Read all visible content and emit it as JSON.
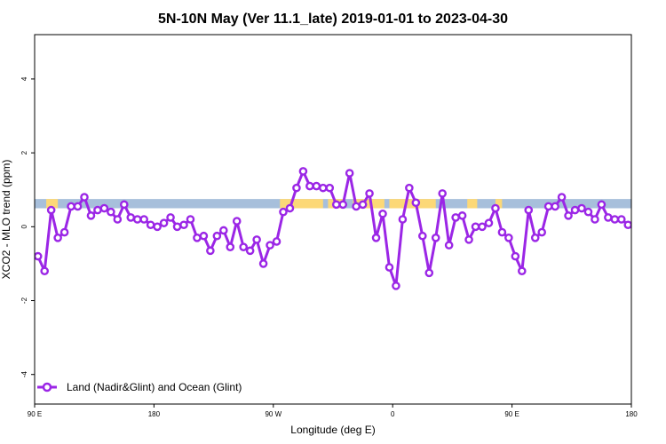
{
  "chart_data": {
    "type": "line",
    "title": "5N-10N May (Ver 11.1_late)   2019-01-01 to 2023-04-30",
    "xlabel": "Longitude (deg E)",
    "ylabel": "XCO2 - MLO trend (ppm)",
    "xlim": [
      90,
      450
    ],
    "ylim": [
      -4.8,
      5.2
    ],
    "x_ticks": [
      {
        "value": 90,
        "label": "90 E"
      },
      {
        "value": 162,
        "label": "180"
      },
      {
        "value": 234,
        "label": "90 W"
      },
      {
        "value": 306,
        "label": "0"
      },
      {
        "value": 378,
        "label": "90 E"
      },
      {
        "value": 450,
        "label": "180"
      }
    ],
    "y_ticks": [
      {
        "value": -4,
        "label": "-4"
      },
      {
        "value": -2,
        "label": "-2"
      },
      {
        "value": 0,
        "label": "0"
      },
      {
        "value": 2,
        "label": "2"
      },
      {
        "value": 4,
        "label": "4"
      }
    ],
    "grid": false,
    "legend_position": "bottom-left",
    "surface_band": {
      "ymin": 0.5,
      "ymax": 0.75,
      "ocean_color": "#a7bfdb",
      "land_color": "#fcd877",
      "land_ranges": [
        [
          97,
          104
        ],
        [
          238,
          264
        ],
        [
          267,
          277
        ],
        [
          282,
          301
        ],
        [
          304,
          332
        ],
        [
          351,
          357
        ],
        [
          368,
          372
        ]
      ]
    },
    "series": [
      {
        "name": "Land (Nadir&Glint) and Ocean (Glint)",
        "color": "#9b26e6",
        "x": [
          92,
          96,
          100,
          104,
          108,
          112,
          116,
          120,
          124,
          128,
          132,
          136,
          140,
          144,
          148,
          152,
          156,
          160,
          164,
          168,
          172,
          176,
          180,
          184,
          188,
          192,
          196,
          200,
          204,
          208,
          212,
          216,
          220,
          224,
          228,
          232,
          236,
          240,
          244,
          248,
          252,
          256,
          260,
          264,
          268,
          272,
          276,
          280,
          284,
          288,
          292,
          296,
          300,
          304,
          308,
          312,
          316,
          320,
          324,
          328,
          332,
          336,
          340,
          344,
          348,
          352,
          356,
          360,
          364,
          368,
          372,
          376,
          380,
          384,
          388,
          392,
          396,
          400,
          404,
          408,
          412,
          416,
          420,
          424,
          428,
          432,
          436,
          440,
          444,
          448,
          452
        ],
        "y": [
          -0.8,
          -1.2,
          0.45,
          -0.3,
          -0.15,
          0.55,
          0.55,
          0.8,
          0.3,
          0.45,
          0.5,
          0.4,
          0.2,
          0.6,
          0.25,
          0.2,
          0.2,
          0.05,
          0.0,
          0.1,
          0.25,
          0.0,
          0.05,
          0.2,
          -0.3,
          -0.25,
          -0.65,
          -0.25,
          -0.1,
          -0.55,
          0.15,
          -0.55,
          -0.65,
          -0.35,
          -1.0,
          -0.5,
          -0.4,
          0.4,
          0.5,
          1.05,
          1.5,
          1.1,
          1.1,
          1.05,
          1.05,
          0.6,
          0.6,
          1.45,
          0.55,
          0.6,
          0.9,
          -0.3,
          0.35,
          -1.1,
          -1.6,
          0.2,
          1.05,
          0.65,
          -0.25,
          -1.25,
          -0.3,
          0.9,
          -0.5,
          0.25,
          0.3,
          -0.35,
          0.0,
          0.0,
          0.1,
          0.5,
          -0.15,
          -0.3,
          -0.8,
          -1.2,
          0.45,
          -0.3,
          -0.15,
          0.55,
          0.55,
          0.8,
          0.3,
          0.45,
          0.5,
          0.4,
          0.2,
          0.6,
          0.25,
          0.2,
          0.2,
          0.05,
          0.0
        ]
      }
    ]
  }
}
